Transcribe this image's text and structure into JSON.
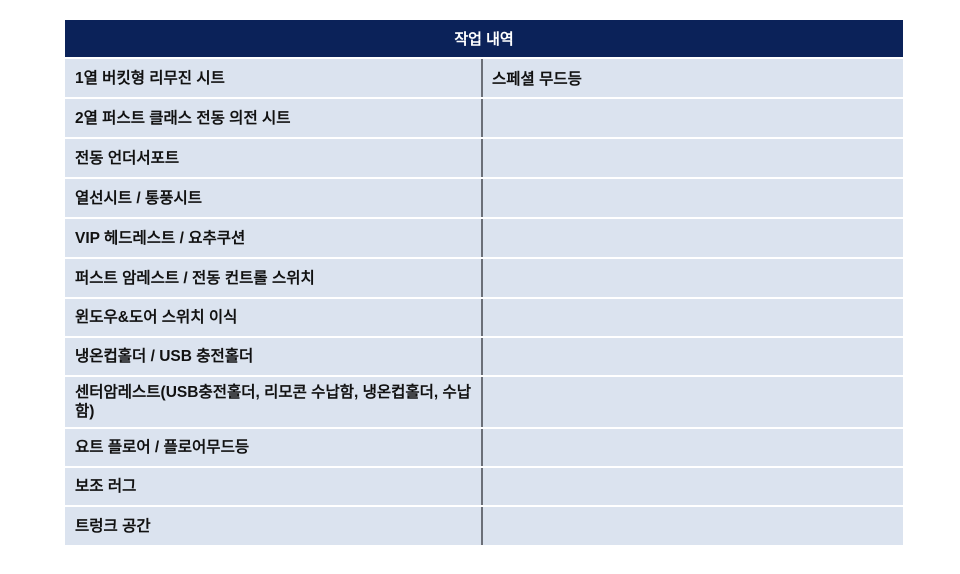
{
  "table": {
    "header": "작업 내역",
    "rows": [
      {
        "left": "1열 버킷형 리무진 시트",
        "right": "스페셜 무드등"
      },
      {
        "left": "2열 퍼스트 클래스 전동 의전 시트",
        "right": ""
      },
      {
        "left": "전동 언더서포트",
        "right": ""
      },
      {
        "left": "열선시트 / 통풍시트",
        "right": ""
      },
      {
        "left": "VIP 헤드레스트 / 요추쿠션",
        "right": ""
      },
      {
        "left": "퍼스트 암레스트 / 전동 컨트롤 스위치",
        "right": ""
      },
      {
        "left": "윈도우&도어 스위치 이식",
        "right": ""
      },
      {
        "left": "냉온컵홀더 / USB 충전홀더",
        "right": ""
      },
      {
        "left": "센터암레스트(USB충전홀더, 리모콘 수납함, 냉온컵홀더, 수납함)",
        "right": ""
      },
      {
        "left": "요트 플로어 / 플로어무드등",
        "right": ""
      },
      {
        "left": "보조 러그",
        "right": ""
      },
      {
        "left": "트렁크 공간",
        "right": ""
      }
    ]
  },
  "colors": {
    "header_bg": "#0b2259",
    "row_bg": "#dbe3ef"
  }
}
